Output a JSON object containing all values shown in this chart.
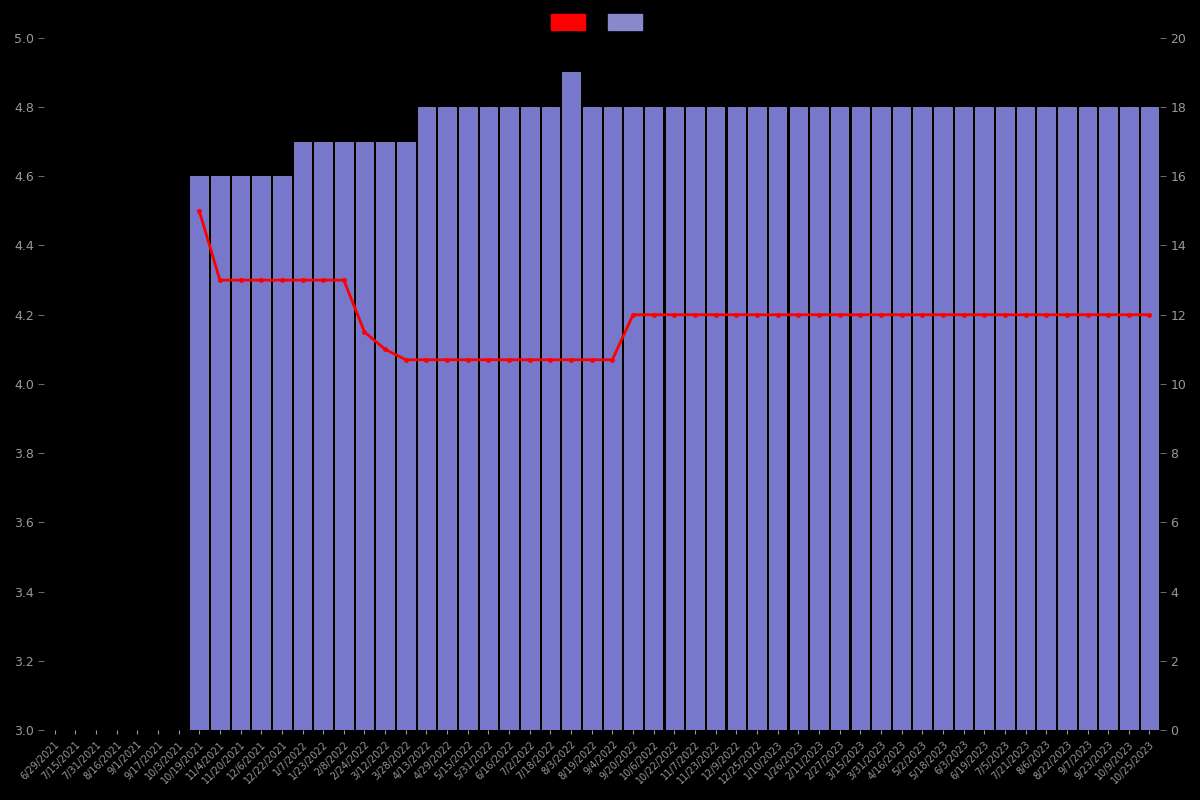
{
  "dates": [
    "6/29/2021",
    "7/15/2021",
    "7/31/2021",
    "8/16/2021",
    "9/1/2021",
    "9/17/2021",
    "10/3/2021",
    "10/19/2021",
    "11/4/2021",
    "11/20/2021",
    "12/6/2021",
    "12/22/2021",
    "1/7/2022",
    "1/23/2022",
    "2/8/2022",
    "2/24/2022",
    "3/12/2022",
    "3/28/2022",
    "4/13/2022",
    "4/29/2022",
    "5/15/2022",
    "5/31/2022",
    "6/16/2022",
    "7/2/2022",
    "7/18/2022",
    "8/3/2022",
    "8/19/2022",
    "9/4/2022",
    "9/20/2022",
    "10/6/2022",
    "10/22/2022",
    "11/7/2022",
    "11/23/2022",
    "12/9/2022",
    "12/25/2022",
    "1/10/2023",
    "1/26/2023",
    "2/11/2023",
    "2/27/2023",
    "3/15/2023",
    "3/31/2023",
    "4/16/2023",
    "5/2/2023",
    "5/18/2023",
    "6/3/2023",
    "6/19/2023",
    "7/5/2023",
    "7/21/2023",
    "8/6/2023",
    "8/22/2023",
    "9/7/2023",
    "9/23/2023",
    "10/9/2023",
    "10/25/2023"
  ],
  "bar_values": [
    0,
    0,
    0,
    0,
    0,
    0,
    0,
    16,
    16,
    16,
    16,
    16,
    17,
    17,
    17,
    17,
    17,
    17,
    18,
    18,
    18,
    18,
    18,
    18,
    18,
    19,
    18,
    18,
    18,
    18,
    18,
    18,
    18,
    18,
    18,
    18,
    18,
    18,
    18,
    18,
    18,
    18,
    18,
    18,
    18,
    18,
    18,
    18,
    18,
    18,
    18,
    18,
    18,
    18
  ],
  "avg_line_values": [
    null,
    null,
    null,
    null,
    null,
    null,
    null,
    4.5,
    4.3,
    4.3,
    4.3,
    4.3,
    4.3,
    4.3,
    4.3,
    4.15,
    4.1,
    4.07,
    4.07,
    4.07,
    4.07,
    4.07,
    4.07,
    4.07,
    4.07,
    4.07,
    4.07,
    4.07,
    4.2,
    4.2,
    4.2,
    4.2,
    4.2,
    4.2,
    4.2,
    4.2,
    4.2,
    4.2,
    4.2,
    4.2,
    4.2,
    4.2,
    4.2,
    4.2,
    4.2,
    4.2,
    4.2,
    4.2,
    4.2,
    4.2,
    4.2,
    4.2,
    4.2,
    4.2
  ],
  "bar_color": "#7777cc",
  "bar_edge_color": "#9999dd",
  "line_color": "#ff0000",
  "background_color": "#000000",
  "text_color": "#999999",
  "ylim_left": [
    3.0,
    5.0
  ],
  "ylim_right": [
    0,
    20
  ],
  "legend_patch1_color": "#ff0000",
  "legend_patch2_color": "#8888cc"
}
